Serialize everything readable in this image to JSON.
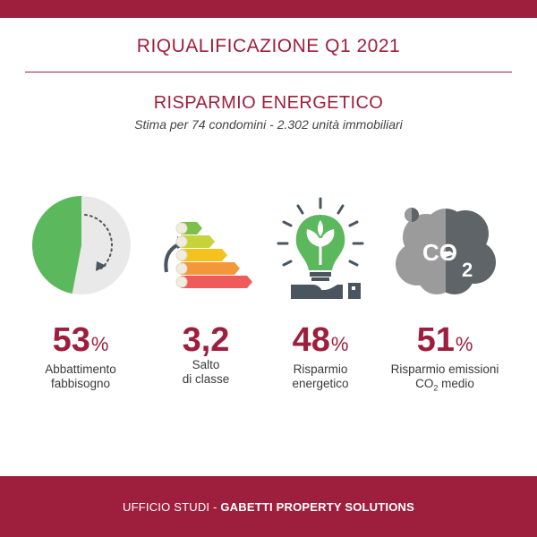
{
  "header": {
    "title": "RIQUALIFICAZIONE Q1 2021"
  },
  "section": {
    "title": "RISPARMIO ENERGETICO",
    "note": "Stima per 74 condomini - 2.302 unità immobiliari"
  },
  "kpis": [
    {
      "icon": "pie-reduction-icon",
      "value": "53",
      "unit": "%",
      "label_line1": "Abbattimento",
      "label_line2": "fabbisogno",
      "fraction": 0.53
    },
    {
      "icon": "energy-class-icon",
      "value": "3,2",
      "unit": "",
      "label_line1": "Salto",
      "label_line2": "di classe"
    },
    {
      "icon": "green-bulb-icon",
      "value": "48",
      "unit": "%",
      "label_line1": "Risparmio",
      "label_line2": "energetico"
    },
    {
      "icon": "co2-cloud-icon",
      "value": "51",
      "unit": "%",
      "label_line1": "Risparmio emissioni",
      "label_line2_pre": "CO",
      "label_line2_sub": "2",
      "label_line2_post": " medio"
    }
  ],
  "footer": {
    "prefix": "UFFICIO STUDI - ",
    "brand": "GABETTI PROPERTY SOLUTIONS"
  },
  "colors": {
    "brand": "#9e1f3d",
    "green": "#5cb85c",
    "grey": "#e9e9e9"
  }
}
